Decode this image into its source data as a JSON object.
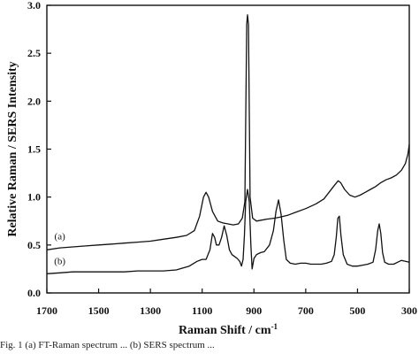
{
  "chart_data": {
    "type": "line",
    "title": "",
    "xlabel": "Raman Shift / cm",
    "xlabel_superscript": "-1",
    "ylabel": "Relative Raman / SERS Intensity",
    "xlim": [
      1700,
      300
    ],
    "x_reversed": true,
    "ylim": [
      0.0,
      3.0
    ],
    "grid": false,
    "x_ticks": [
      1700,
      1500,
      1300,
      1100,
      900,
      700,
      500,
      300
    ],
    "x_tick_labels": [
      "1700",
      "1500",
      "1300",
      "1100",
      "900",
      "700",
      "500",
      "300"
    ],
    "y_ticks": [
      0.0,
      0.5,
      1.0,
      1.5,
      2.0,
      2.5,
      3.0
    ],
    "y_tick_labels": [
      "0.0",
      "0.5",
      "1.0",
      "1.5",
      "2.0",
      "2.5",
      "3.0"
    ],
    "series": [
      {
        "label": "(a)",
        "label_position": {
          "x": 1650,
          "y": 0.56
        },
        "color": "#111111",
        "points": [
          [
            1700,
            0.45
          ],
          [
            1650,
            0.47
          ],
          [
            1600,
            0.48
          ],
          [
            1550,
            0.49
          ],
          [
            1500,
            0.5
          ],
          [
            1450,
            0.51
          ],
          [
            1400,
            0.52
          ],
          [
            1350,
            0.53
          ],
          [
            1300,
            0.54
          ],
          [
            1250,
            0.56
          ],
          [
            1200,
            0.58
          ],
          [
            1160,
            0.6
          ],
          [
            1130,
            0.65
          ],
          [
            1110,
            0.8
          ],
          [
            1095,
            1.0
          ],
          [
            1085,
            1.05
          ],
          [
            1075,
            1.0
          ],
          [
            1060,
            0.85
          ],
          [
            1040,
            0.75
          ],
          [
            1020,
            0.73
          ],
          [
            1000,
            0.72
          ],
          [
            980,
            0.71
          ],
          [
            960,
            0.72
          ],
          [
            945,
            0.78
          ],
          [
            935,
            0.95
          ],
          [
            928,
            2.8
          ],
          [
            925,
            2.9
          ],
          [
            921,
            2.8
          ],
          [
            915,
            1.0
          ],
          [
            905,
            0.78
          ],
          [
            890,
            0.75
          ],
          [
            870,
            0.76
          ],
          [
            850,
            0.77
          ],
          [
            820,
            0.78
          ],
          [
            800,
            0.79
          ],
          [
            770,
            0.81
          ],
          [
            740,
            0.84
          ],
          [
            700,
            0.88
          ],
          [
            660,
            0.93
          ],
          [
            630,
            0.98
          ],
          [
            610,
            1.05
          ],
          [
            590,
            1.12
          ],
          [
            575,
            1.17
          ],
          [
            565,
            1.15
          ],
          [
            550,
            1.08
          ],
          [
            530,
            1.02
          ],
          [
            510,
            1.0
          ],
          [
            490,
            1.02
          ],
          [
            470,
            1.05
          ],
          [
            450,
            1.08
          ],
          [
            430,
            1.11
          ],
          [
            410,
            1.15
          ],
          [
            390,
            1.18
          ],
          [
            370,
            1.2
          ],
          [
            350,
            1.23
          ],
          [
            330,
            1.28
          ],
          [
            315,
            1.35
          ],
          [
            305,
            1.45
          ],
          [
            300,
            1.55
          ]
        ]
      },
      {
        "label": "(b)",
        "label_position": {
          "x": 1650,
          "y": 0.3
        },
        "color": "#111111",
        "points": [
          [
            1700,
            0.2
          ],
          [
            1650,
            0.21
          ],
          [
            1600,
            0.22
          ],
          [
            1550,
            0.22
          ],
          [
            1500,
            0.22
          ],
          [
            1450,
            0.22
          ],
          [
            1400,
            0.22
          ],
          [
            1350,
            0.23
          ],
          [
            1300,
            0.23
          ],
          [
            1250,
            0.23
          ],
          [
            1200,
            0.24
          ],
          [
            1150,
            0.28
          ],
          [
            1120,
            0.33
          ],
          [
            1100,
            0.35
          ],
          [
            1085,
            0.35
          ],
          [
            1070,
            0.45
          ],
          [
            1060,
            0.62
          ],
          [
            1052,
            0.58
          ],
          [
            1045,
            0.5
          ],
          [
            1035,
            0.5
          ],
          [
            1025,
            0.58
          ],
          [
            1015,
            0.7
          ],
          [
            1005,
            0.6
          ],
          [
            995,
            0.45
          ],
          [
            985,
            0.4
          ],
          [
            975,
            0.38
          ],
          [
            965,
            0.36
          ],
          [
            955,
            0.33
          ],
          [
            948,
            0.28
          ],
          [
            942,
            0.35
          ],
          [
            937,
            0.6
          ],
          [
            932,
            0.95
          ],
          [
            925,
            1.08
          ],
          [
            918,
            0.95
          ],
          [
            912,
            0.5
          ],
          [
            907,
            0.25
          ],
          [
            900,
            0.36
          ],
          [
            890,
            0.4
          ],
          [
            875,
            0.42
          ],
          [
            860,
            0.43
          ],
          [
            840,
            0.5
          ],
          [
            825,
            0.65
          ],
          [
            815,
            0.85
          ],
          [
            805,
            0.97
          ],
          [
            795,
            0.82
          ],
          [
            785,
            0.55
          ],
          [
            775,
            0.35
          ],
          [
            760,
            0.31
          ],
          [
            740,
            0.3
          ],
          [
            720,
            0.31
          ],
          [
            700,
            0.31
          ],
          [
            680,
            0.3
          ],
          [
            660,
            0.3
          ],
          [
            640,
            0.3
          ],
          [
            620,
            0.31
          ],
          [
            600,
            0.33
          ],
          [
            590,
            0.4
          ],
          [
            582,
            0.58
          ],
          [
            576,
            0.78
          ],
          [
            570,
            0.8
          ],
          [
            564,
            0.6
          ],
          [
            555,
            0.4
          ],
          [
            540,
            0.3
          ],
          [
            520,
            0.28
          ],
          [
            500,
            0.28
          ],
          [
            480,
            0.29
          ],
          [
            460,
            0.3
          ],
          [
            440,
            0.32
          ],
          [
            430,
            0.45
          ],
          [
            422,
            0.65
          ],
          [
            416,
            0.72
          ],
          [
            410,
            0.62
          ],
          [
            403,
            0.42
          ],
          [
            395,
            0.32
          ],
          [
            380,
            0.3
          ],
          [
            360,
            0.3
          ],
          [
            345,
            0.32
          ],
          [
            330,
            0.34
          ],
          [
            315,
            0.33
          ],
          [
            300,
            0.32
          ]
        ]
      }
    ]
  },
  "caption_text": "Fig. 1 (a) FT-Raman spectrum ... (b) SERS spectrum ..."
}
